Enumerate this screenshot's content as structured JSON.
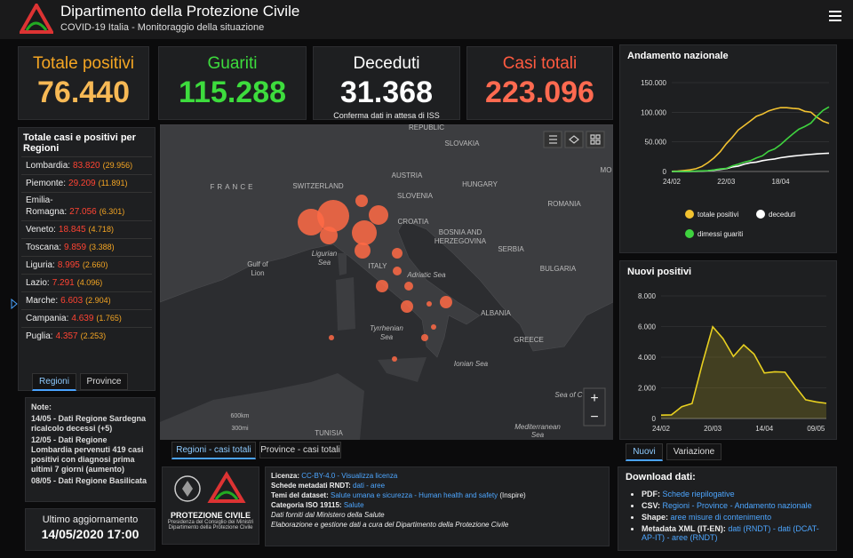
{
  "header": {
    "title": "Dipartimento della Protezione Civile",
    "subtitle": "COVID-19 Italia - Monitoraggio della situazione"
  },
  "kpis": [
    {
      "label": "Totale positivi",
      "value": "76.440"
    },
    {
      "label": "Guariti",
      "value": "115.288"
    },
    {
      "label": "Deceduti",
      "value": "31.368",
      "note": "Conferma dati in attesa di ISS"
    },
    {
      "label": "Casi totali",
      "value": "223.096"
    }
  ],
  "regions": {
    "title": "Totale casi e positivi per Regioni",
    "rows": [
      {
        "name": "Lombardia:",
        "total": "83.820",
        "positives": "(29.956)"
      },
      {
        "name": "Piemonte:",
        "total": "29.209",
        "positives": "(11.891)"
      },
      {
        "name": "Emilia-Romagna:",
        "total": "27.056",
        "positives": "(6.301)"
      },
      {
        "name": "Veneto:",
        "total": "18.845",
        "positives": "(4.718)"
      },
      {
        "name": "Toscana:",
        "total": "9.859",
        "positives": "(3.388)"
      },
      {
        "name": "Liguria:",
        "total": "8.995",
        "positives": "(2.660)"
      },
      {
        "name": "Lazio:",
        "total": "7.291",
        "positives": "(4.096)"
      },
      {
        "name": "Marche:",
        "total": "6.603",
        "positives": "(2.904)"
      },
      {
        "name": "Campania:",
        "total": "4.639",
        "positives": "(1.765)"
      },
      {
        "name": "Puglia:",
        "total": "4.357",
        "positives": "(2.253)"
      }
    ],
    "tabs": [
      "Regioni",
      "Province"
    ]
  },
  "notes": {
    "title": "Note:",
    "items": [
      "14/05 - Dati Regione Sardegna ricalcolo decessi (+5)",
      "12/05 - Dati Regione Lombardia pervenuti 419 casi positivi con diagnosi prima ultimi 7 giorni (aumento)",
      "08/05 - Dati Regione Basilicata"
    ]
  },
  "update": {
    "label": "Ultimo aggiornamento",
    "value": "14/05/2020 17:00"
  },
  "map": {
    "labels": [
      "REPUBLIC",
      "SLOVAKIA",
      "FRANCE",
      "SWITZERLAND",
      "AUSTRIA",
      "HUNGARY",
      "SLOVENIA",
      "CROATIA",
      "ROMANIA",
      "BOSNIA AND",
      "HERZEGOVINA",
      "SERBIA",
      "Gulf of",
      "Lion",
      "Ligurian",
      "Sea",
      "ITALY",
      "Adriatic Sea",
      "BULGARIA",
      "ALBANIA",
      "GREECE",
      "Tyrrhenian",
      "Sea",
      "Ionian Sea",
      "TUNISIA",
      "Mediterranean",
      "Sea",
      "Sea of C",
      "MO"
    ],
    "zoom": [
      "+",
      "−"
    ],
    "scale": [
      "600km",
      "300mi"
    ],
    "tabs": [
      "Regioni - casi totali",
      "Province - casi totali"
    ]
  },
  "chart_data": [
    {
      "type": "line",
      "title": "Andamento nazionale",
      "categories": [
        "24/02",
        null,
        null,
        null,
        null,
        null,
        null,
        null,
        null,
        "22/03",
        null,
        null,
        null,
        null,
        null,
        null,
        null,
        null,
        "18/04",
        null,
        null,
        null,
        null,
        null,
        null,
        null,
        null
      ],
      "series": [
        {
          "name": "totale positivi",
          "color": "#f2c230",
          "values": [
            221,
            638,
            1577,
            2706,
            4636,
            8514,
            14955,
            23073,
            33190,
            46638,
            57521,
            70065,
            77635,
            85388,
            93187,
            96877,
            102253,
            105418,
            107771,
            107709,
            106527,
            105813,
            101551,
            100179,
            91528,
            84842,
            81266
          ]
        },
        {
          "name": "deceduti",
          "color": "#ffffff",
          "values": [
            7,
            17,
            34,
            107,
            233,
            631,
            1266,
            2158,
            3405,
            4825,
            7503,
            9134,
            12428,
            14681,
            15887,
            18279,
            19899,
            21067,
            23227,
            24648,
            25969,
            26977,
            27967,
            28884,
            29684,
            30395,
            30911
          ]
        },
        {
          "name": "dimessi guariti",
          "color": "#3fd23f",
          "values": [
            1,
            45,
            83,
            276,
            589,
            1004,
            1439,
            2749,
            4440,
            5129,
            9362,
            12384,
            15729,
            18278,
            22837,
            26491,
            34211,
            38092,
            45354,
            54543,
            63120,
            71252,
            75945,
            81654,
            93245,
            103031,
            109039
          ]
        }
      ],
      "ylim": [
        0,
        150000
      ],
      "yticks": [
        0,
        {
          "value": 50000,
          "label": "50.000"
        },
        {
          "value": 100000,
          "label": "100.000"
        },
        {
          "value": 150000,
          "label": "150.000"
        }
      ],
      "grid": true,
      "legend": "bottom"
    },
    {
      "type": "area",
      "title": "Nuovi positivi",
      "categories": [
        "24/02",
        null,
        null,
        null,
        null,
        "20/03",
        null,
        null,
        null,
        null,
        "14/04",
        null,
        null,
        null,
        null,
        "09/05",
        null
      ],
      "series": [
        {
          "name": "Nuovi",
          "color": "#e8d020",
          "values": [
            221,
            238,
            769,
            977,
            3590,
            5986,
            5210,
            4050,
            4805,
            4204,
            2972,
            3047,
            3021,
            2086,
            1221,
            1083,
            992
          ]
        }
      ],
      "ylim": [
        0,
        8000
      ],
      "yticks": [
        0,
        {
          "value": 2000,
          "label": "2.000"
        },
        {
          "value": 4000,
          "label": "4.000"
        },
        {
          "value": 6000,
          "label": "6.000"
        },
        {
          "value": 8000,
          "label": "8.000"
        }
      ],
      "grid": true
    }
  ],
  "chart_tabs": [
    "Nuovi",
    "Variazione"
  ],
  "logo": {
    "name": "PROTEZIONE CIVILE",
    "lines": [
      "Presidenza del Consiglio dei Ministri",
      "Dipartimento della Protezione Civile"
    ]
  },
  "license": {
    "lines": [
      [
        "Licenza:",
        "CC-BY-4.0 - Visualizza licenza"
      ],
      [
        "Schede metadati RNDT:",
        "dati - aree"
      ],
      [
        "Temi del dataset:",
        "Salute umana e sicurezza - Human health and safety",
        "(Inspire)"
      ],
      [
        "Categoria ISO 19115:",
        "Salute"
      ],
      [
        "Dati forniti dal Ministero della Salute"
      ],
      [
        "Elaborazione e gestione dati a cura del Dipartimento della Protezione Civile"
      ]
    ]
  },
  "download": {
    "title": "Download dati:",
    "items": [
      [
        "PDF:",
        "Schede riepilogative"
      ],
      [
        "CSV:",
        "Regioni - Province - Andamento nazionale"
      ],
      [
        "Shape:",
        "aree misure di contenimento"
      ],
      [
        "Metadata XML (IT-EN):",
        "dati (RNDT) - dati (DCAT-AP-IT) - aree (RNDT)"
      ]
    ]
  }
}
